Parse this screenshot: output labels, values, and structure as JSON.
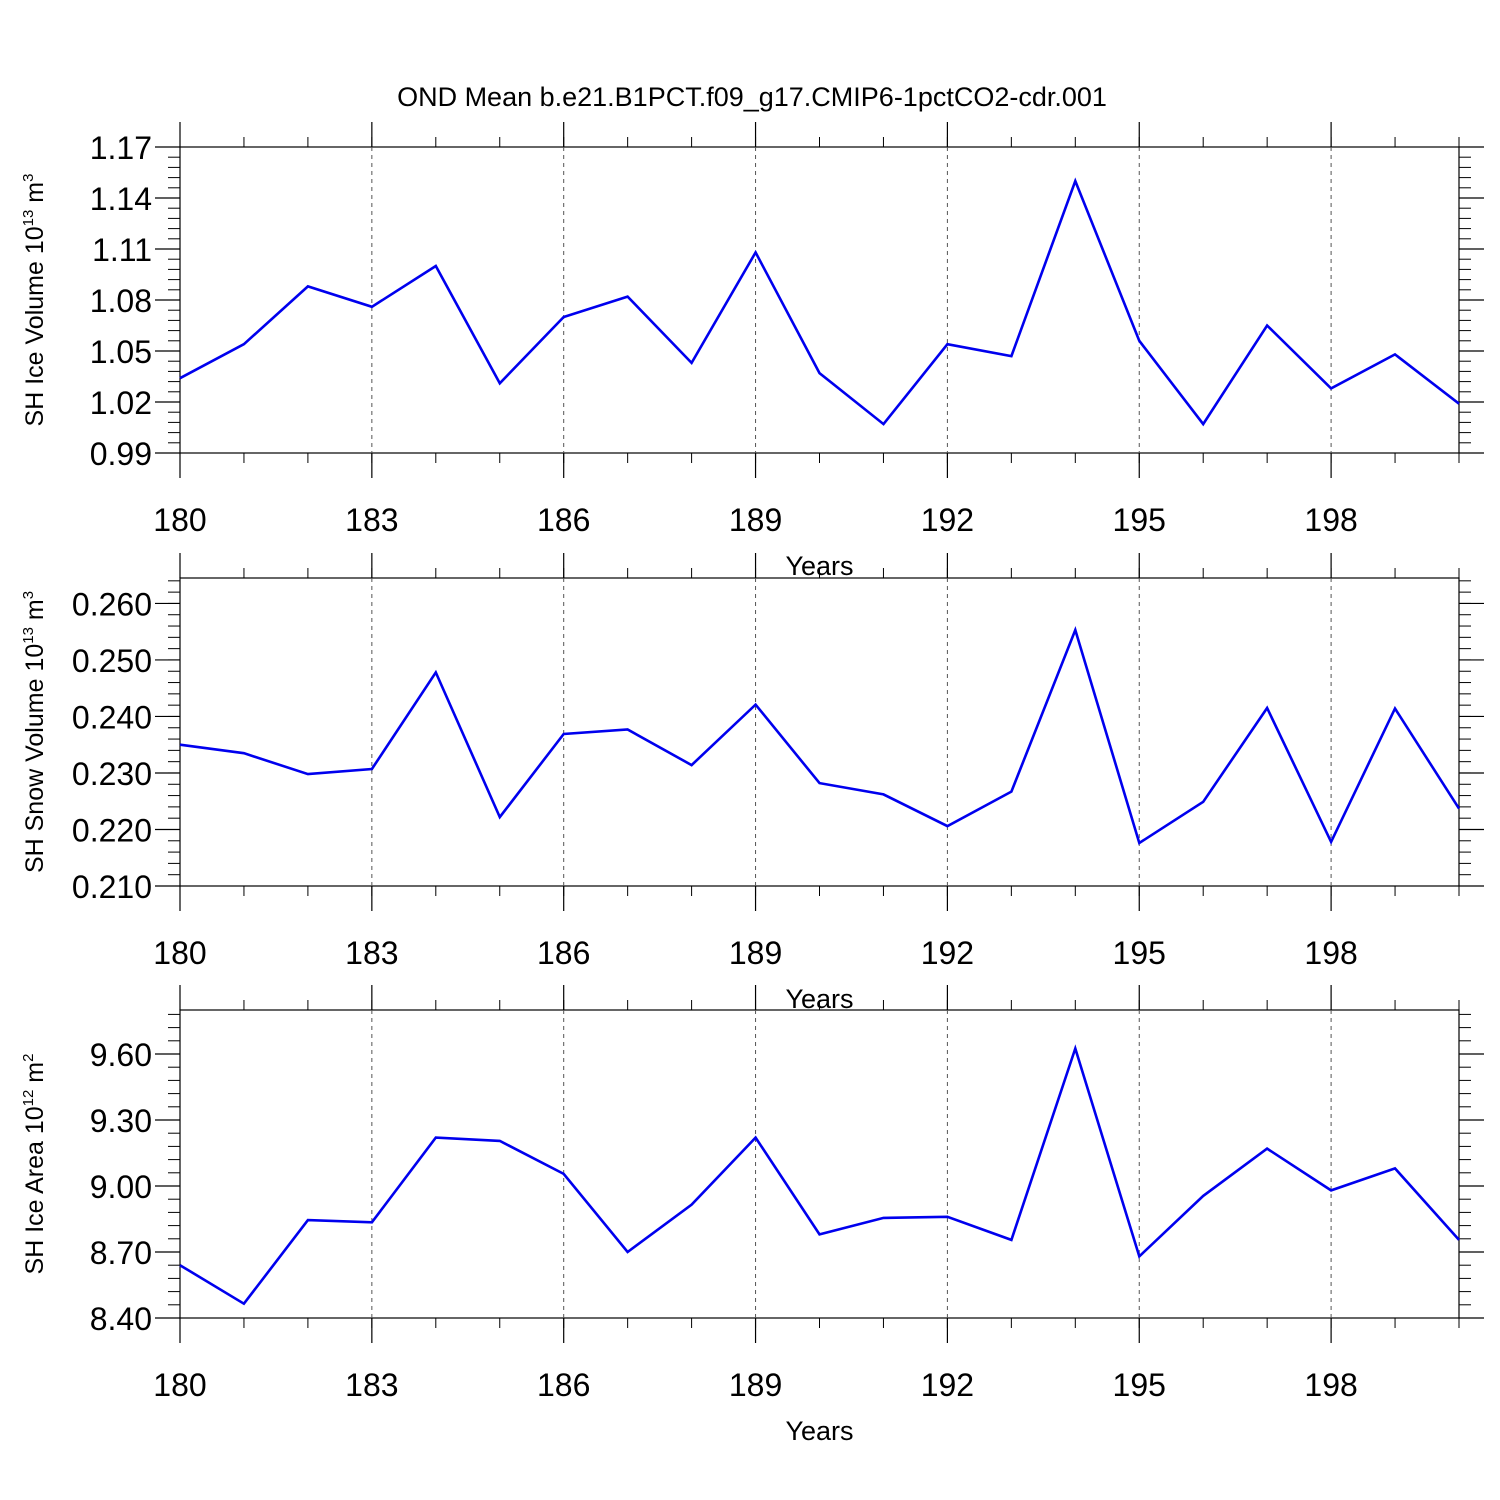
{
  "title": "OND Mean b.e21.B1PCT.f09_g17.CMIP6-1pctCO2-cdr.001",
  "line_color": "#0000ee",
  "chart_data": [
    {
      "type": "line",
      "title": "OND Mean b.e21.B1PCT.f09_g17.CMIP6-1pctCO2-cdr.001",
      "xlabel": "Years",
      "ylabel": {
        "text": "SH Ice Volume 10",
        "exp": "13",
        "unit": " m",
        "unit_exp": "3"
      },
      "xlim": [
        180,
        200
      ],
      "xticks": [
        180,
        183,
        186,
        189,
        192,
        195,
        198
      ],
      "xtick_labels": [
        "180",
        "183",
        "186",
        "189",
        "192",
        "195",
        "198"
      ],
      "ylim": [
        0.99,
        1.17
      ],
      "yticks": [
        0.99,
        1.02,
        1.05,
        1.08,
        1.11,
        1.14,
        1.17
      ],
      "ytick_labels": [
        "0.99",
        "1.02",
        "1.05",
        "1.08",
        "1.11",
        "1.14",
        "1.17"
      ],
      "grid": "vertical dashed",
      "x": [
        180,
        181,
        182,
        183,
        184,
        185,
        186,
        187,
        188,
        189,
        190,
        191,
        192,
        193,
        194,
        195,
        196,
        197,
        198,
        199,
        200
      ],
      "values": [
        1.034,
        1.054,
        1.088,
        1.076,
        1.1,
        1.031,
        1.07,
        1.082,
        1.043,
        1.108,
        1.037,
        1.007,
        1.054,
        1.047,
        1.15,
        1.056,
        1.007,
        1.065,
        1.028,
        1.048,
        1.019
      ]
    },
    {
      "type": "line",
      "xlabel": "Years",
      "ylabel": {
        "text": "SH Snow Volume 10",
        "exp": "13",
        "unit": " m",
        "unit_exp": "3"
      },
      "xlim": [
        180,
        200
      ],
      "xticks": [
        180,
        183,
        186,
        189,
        192,
        195,
        198
      ],
      "xtick_labels": [
        "180",
        "183",
        "186",
        "189",
        "192",
        "195",
        "198"
      ],
      "ylim": [
        0.21,
        0.2645
      ],
      "yticks": [
        0.21,
        0.22,
        0.23,
        0.24,
        0.25,
        0.26
      ],
      "ytick_labels": [
        "0.210",
        "0.220",
        "0.230",
        "0.240",
        "0.250",
        "0.260"
      ],
      "grid": "vertical dashed",
      "x": [
        180,
        181,
        182,
        183,
        184,
        185,
        186,
        187,
        188,
        189,
        190,
        191,
        192,
        193,
        194,
        195,
        196,
        197,
        198,
        199,
        200
      ],
      "values": [
        0.235,
        0.2335,
        0.2298,
        0.2307,
        0.2478,
        0.2222,
        0.2369,
        0.2377,
        0.2314,
        0.2421,
        0.2282,
        0.2262,
        0.2206,
        0.2267,
        0.2553,
        0.2176,
        0.2249,
        0.2415,
        0.2178,
        0.2414,
        0.2237
      ]
    },
    {
      "type": "line",
      "xlabel": "Years",
      "ylabel": {
        "text": "SH Ice Area 10",
        "exp": "12",
        "unit": " m",
        "unit_exp": "2"
      },
      "xlim": [
        180,
        200
      ],
      "xticks": [
        180,
        183,
        186,
        189,
        192,
        195,
        198
      ],
      "xtick_labels": [
        "180",
        "183",
        "186",
        "189",
        "192",
        "195",
        "198"
      ],
      "ylim": [
        8.4,
        9.8
      ],
      "yticks": [
        8.4,
        8.7,
        9.0,
        9.3,
        9.6
      ],
      "ytick_labels": [
        "8.40",
        "8.70",
        "9.00",
        "9.30",
        "9.60"
      ],
      "grid": "vertical dashed",
      "x": [
        180,
        181,
        182,
        183,
        184,
        185,
        186,
        187,
        188,
        189,
        190,
        191,
        192,
        193,
        194,
        195,
        196,
        197,
        198,
        199,
        200
      ],
      "values": [
        8.64,
        8.465,
        8.845,
        8.835,
        9.22,
        9.205,
        9.055,
        8.7,
        8.915,
        9.22,
        8.78,
        8.855,
        8.86,
        8.755,
        9.625,
        8.68,
        8.955,
        9.17,
        8.98,
        9.08,
        8.755
      ]
    }
  ]
}
